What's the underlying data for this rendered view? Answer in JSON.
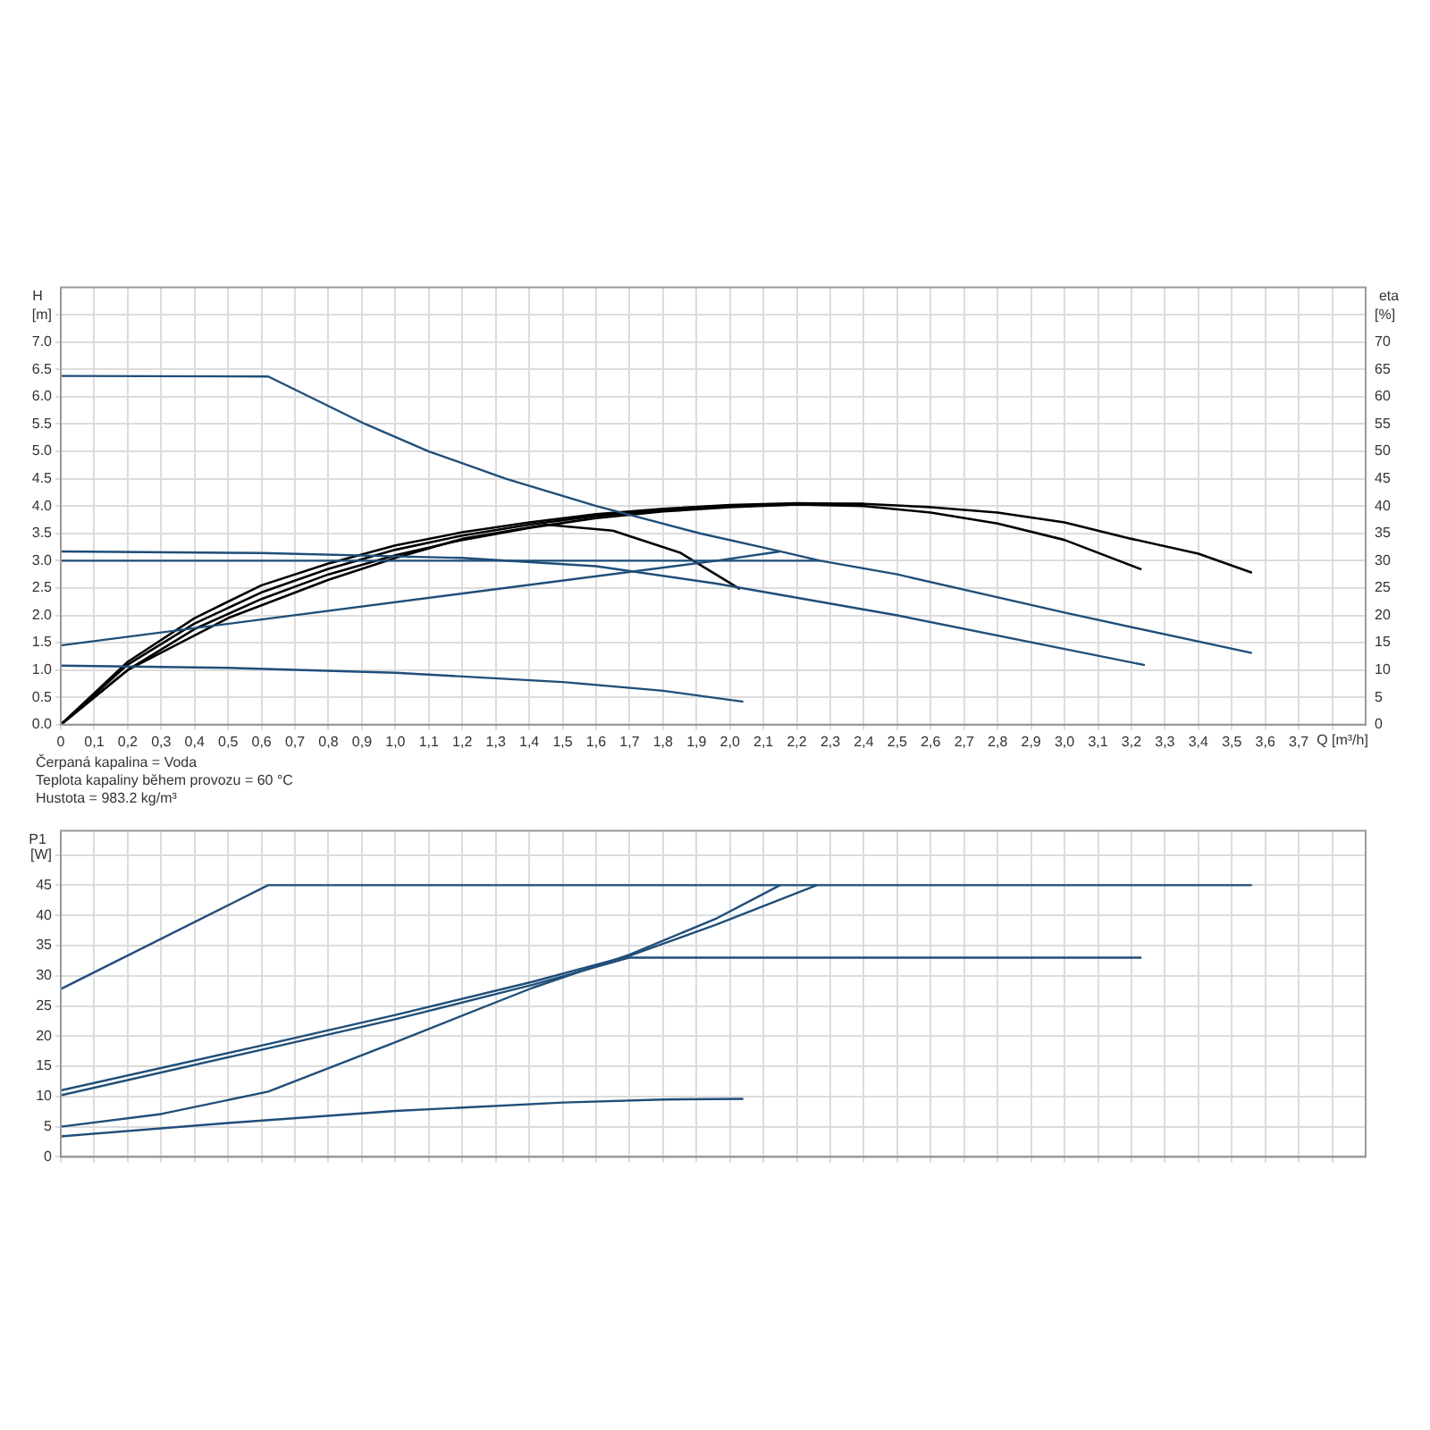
{
  "chart_data": [
    {
      "type": "line",
      "xlabel": "Q [m³/h]",
      "ylabel": "H",
      "y2label": "eta",
      "grid": true,
      "xlim": [
        0,
        3.9
      ],
      "ylim": [
        0,
        8
      ],
      "y2lim": [
        0,
        80
      ],
      "xticks": [
        0,
        {
          "value": 0.1,
          "label": "0,1"
        },
        {
          "value": 0.2,
          "label": "0,2"
        },
        {
          "value": 0.3,
          "label": "0,3"
        },
        {
          "value": 0.4,
          "label": "0,4"
        },
        {
          "value": 0.5,
          "label": "0,5"
        },
        {
          "value": 0.6,
          "label": "0,6"
        },
        {
          "value": 0.7,
          "label": "0,7"
        },
        {
          "value": 0.8,
          "label": "0,8"
        },
        {
          "value": 0.9,
          "label": "0,9"
        },
        {
          "value": 1,
          "label": "1,0"
        },
        {
          "value": 1.1,
          "label": "1,1"
        },
        {
          "value": 1.2,
          "label": "1,2"
        },
        {
          "value": 1.3,
          "label": "1,3"
        },
        {
          "value": 1.4,
          "label": "1,4"
        },
        {
          "value": 1.5,
          "label": "1,5"
        },
        {
          "value": 1.6,
          "label": "1,6"
        },
        {
          "value": 1.7,
          "label": "1,7"
        },
        {
          "value": 1.8,
          "label": "1,8"
        },
        {
          "value": 1.9,
          "label": "1,9"
        },
        {
          "value": 2,
          "label": "2,0"
        },
        {
          "value": 2.1,
          "label": "2,1"
        },
        {
          "value": 2.2,
          "label": "2,2"
        },
        {
          "value": 2.3,
          "label": "2,3"
        },
        {
          "value": 2.4,
          "label": "2,4"
        },
        {
          "value": 2.5,
          "label": "2,5"
        },
        {
          "value": 2.6,
          "label": "2,6"
        },
        {
          "value": 2.7,
          "label": "2,7"
        },
        {
          "value": 2.8,
          "label": "2,8"
        },
        {
          "value": 2.9,
          "label": "2,9"
        },
        {
          "value": 3,
          "label": "3,0"
        },
        {
          "value": 3.1,
          "label": "3,1"
        },
        {
          "value": 3.2,
          "label": "3,2"
        },
        {
          "value": 3.3,
          "label": "3,3"
        },
        {
          "value": 3.4,
          "label": "3,4"
        },
        {
          "value": 3.5,
          "label": "3,5"
        },
        {
          "value": 3.6,
          "label": "3,6"
        },
        {
          "value": 3.7,
          "label": "3,7"
        },
        {
          "value": 3.8,
          "label": null
        }
      ],
      "yticks": [
        {
          "value": 0,
          "label": "0.0"
        },
        0.5,
        {
          "value": 1,
          "label": "1.0"
        },
        1.5,
        {
          "value": 2,
          "label": "2.0"
        },
        2.5,
        {
          "value": 3,
          "label": "3.0"
        },
        3.5,
        {
          "value": 4,
          "label": "4.0"
        },
        4.5,
        {
          "value": 5,
          "label": "5.0"
        },
        5.5,
        {
          "value": 6,
          "label": "6.0"
        },
        6.5,
        {
          "value": 7,
          "label": "7.0"
        },
        {
          "value": 7.5,
          "label": "[m]"
        }
      ],
      "y2ticks": [
        0,
        5,
        10,
        15,
        20,
        25,
        30,
        35,
        40,
        45,
        50,
        55,
        60,
        65,
        70,
        {
          "value": 75,
          "label": "[%]"
        }
      ],
      "annotations": [
        "Čerpaná kapalina = Voda",
        "Teplota kapaliny během provozu = 60 °C",
        "Hustota = 983.2 kg/m³"
      ],
      "series": [
        {
          "color": "#1f4e79",
          "x": [
            0,
            0.62,
            0.91,
            1.1,
            1.33,
            1.6,
            1.91,
            2.15,
            2.27,
            2.5,
            3.0,
            3.56
          ],
          "values": [
            6.38,
            6.37,
            5.5,
            5.0,
            4.5,
            4.0,
            3.5,
            3.17,
            3.0,
            2.75,
            2.05,
            1.31
          ]
        },
        {
          "color": "#1f4e79",
          "x": [
            0,
            0.6,
            1.2,
            1.6,
            1.96,
            2.5,
            3.24
          ],
          "values": [
            3.17,
            3.14,
            3.05,
            2.9,
            2.58,
            2.0,
            1.09
          ]
        },
        {
          "color": "#1f4e79",
          "x": [
            0,
            2.27
          ],
          "values": [
            3.0,
            3.0
          ]
        },
        {
          "color": "#1f4e79",
          "x": [
            0,
            1.96,
            2.15
          ],
          "values": [
            1.45,
            3.0,
            3.17
          ]
        },
        {
          "color": "#1f4e79",
          "x": [
            0,
            0.5,
            1.0,
            1.5,
            1.8,
            2.04
          ],
          "values": [
            1.08,
            1.04,
            0.95,
            0.78,
            0.62,
            0.42
          ]
        },
        {
          "color": "#000000",
          "axis": "y2",
          "x": [
            0,
            0.2,
            0.5,
            0.8,
            1.0,
            1.2,
            1.45,
            1.65,
            1.85,
            2.03
          ],
          "values": [
            0,
            10,
            19.5,
            26.5,
            30.5,
            34,
            36.6,
            35.5,
            31.5,
            24.8
          ]
        },
        {
          "color": "#000000",
          "axis": "y2",
          "x": [
            0,
            0.2,
            0.4,
            0.6,
            0.8,
            1.0,
            1.2,
            1.4,
            1.6,
            1.8,
            2.0,
            2.2,
            2.4,
            2.6,
            2.8,
            3.0,
            3.23
          ],
          "values": [
            0,
            11,
            18.5,
            24.2,
            28.5,
            32,
            34.6,
            36.6,
            38.2,
            39.3,
            40,
            40.3,
            40,
            38.8,
            36.8,
            33.8,
            28.4
          ]
        },
        {
          "color": "#000000",
          "axis": "y2",
          "x": [
            0,
            0.2,
            0.4,
            0.6,
            0.8,
            1.0,
            1.2,
            1.4,
            1.6,
            1.8,
            2.0,
            2.2,
            2.4,
            2.6,
            2.8,
            3.0,
            3.2,
            3.4,
            3.56
          ],
          "values": [
            0,
            10,
            17.5,
            23,
            27.5,
            31,
            33.8,
            36,
            37.8,
            39,
            39.8,
            40.3,
            40.4,
            39.8,
            38.8,
            37,
            34,
            31.3,
            27.8
          ]
        },
        {
          "color": "#000000",
          "axis": "y2",
          "x": [
            0,
            0.2,
            0.4,
            0.6,
            0.8,
            1.0,
            1.2,
            1.4,
            1.6,
            1.8,
            2.0,
            2.2,
            2.4
          ],
          "values": [
            0,
            11.5,
            19.5,
            25.5,
            29.5,
            32.8,
            35.2,
            37,
            38.5,
            39.5,
            40.2,
            40.5,
            40.4
          ]
        }
      ]
    },
    {
      "type": "line",
      "ylabel": "P1",
      "grid": true,
      "tick_labels": "y",
      "xlim": [
        0,
        3.9
      ],
      "ylim": [
        0,
        54
      ],
      "xticks": [
        0,
        0.1,
        0.2,
        0.3,
        0.4,
        0.5,
        0.6,
        0.7,
        0.8,
        0.9,
        1,
        1.1,
        1.2,
        1.3,
        1.4,
        1.5,
        1.6,
        1.7,
        1.8,
        1.9,
        2,
        2.1,
        2.2,
        2.3,
        2.4,
        2.5,
        2.6,
        2.7,
        2.8,
        2.9,
        3,
        3.1,
        3.2,
        3.3,
        3.4,
        3.5,
        3.6,
        3.7,
        3.8
      ],
      "yticks": [
        0,
        5,
        10,
        15,
        20,
        25,
        30,
        35,
        40,
        45,
        {
          "value": 50,
          "label": "[W]"
        }
      ],
      "series": [
        {
          "color": "#1f4e79",
          "x": [
            0,
            0.62,
            3.56
          ],
          "values": [
            27.8,
            45,
            45
          ]
        },
        {
          "color": "#1f4e79",
          "x": [
            0,
            0.62,
            1.0,
            1.41,
            1.7,
            3.23
          ],
          "values": [
            10.2,
            18,
            22.8,
            28.5,
            33,
            33
          ]
        },
        {
          "color": "#1f4e79",
          "x": [
            0,
            0.62,
            1.0,
            1.41,
            1.7,
            1.96,
            2.26
          ],
          "values": [
            11,
            18.7,
            23.5,
            29,
            33.3,
            38.5,
            45
          ]
        },
        {
          "color": "#1f4e79",
          "x": [
            0,
            0.3,
            0.62,
            1.0,
            1.41,
            1.7,
            1.96,
            2.15
          ],
          "values": [
            5,
            7.1,
            10.8,
            19,
            28,
            33.5,
            39.5,
            45
          ]
        },
        {
          "color": "#1f4e79",
          "x": [
            0,
            0.5,
            1.0,
            1.5,
            1.8,
            2.04
          ],
          "values": [
            3.4,
            5.6,
            7.6,
            9,
            9.5,
            9.6
          ]
        }
      ]
    }
  ]
}
